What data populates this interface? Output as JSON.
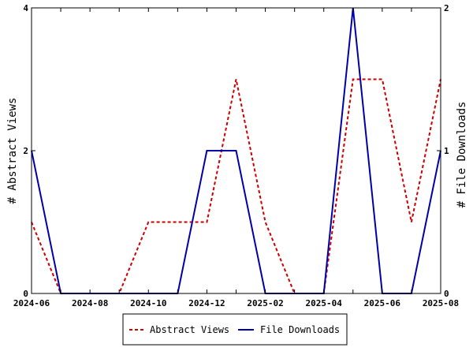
{
  "chart_data": {
    "type": "line",
    "x": [
      "2024-06",
      "2024-07",
      "2024-08",
      "2024-09",
      "2024-10",
      "2024-11",
      "2024-12",
      "2025-01",
      "2025-02",
      "2025-03",
      "2025-04",
      "2025-05",
      "2025-06",
      "2025-07",
      "2025-08"
    ],
    "x_tick_labels": [
      "2024-06",
      "2024-08",
      "2024-10",
      "2024-12",
      "2025-02",
      "2025-04",
      "2025-06",
      "2025-08"
    ],
    "series": [
      {
        "name": "Abstract Views",
        "axis": "left",
        "color": "#cc0000",
        "style": "dashed",
        "values": [
          1,
          0,
          0,
          0,
          1,
          1,
          1,
          3,
          1,
          0,
          0,
          3,
          3,
          1,
          3
        ]
      },
      {
        "name": "File Downloads",
        "axis": "right",
        "color": "#0000aa",
        "style": "solid",
        "values": [
          1,
          0,
          0,
          0,
          0,
          0,
          1,
          1,
          0,
          0,
          0,
          2,
          0,
          0,
          1
        ]
      }
    ],
    "ylabel_left": "# Abstract Views",
    "ylabel_right": "# File Downloads",
    "ylim_left": [
      0,
      4
    ],
    "ylim_right": [
      0,
      2
    ],
    "yticks_left": [
      "0",
      "2",
      "4"
    ],
    "yticks_right": [
      "0",
      "1",
      "2"
    ],
    "grid": false,
    "legend_position": "bottom"
  }
}
